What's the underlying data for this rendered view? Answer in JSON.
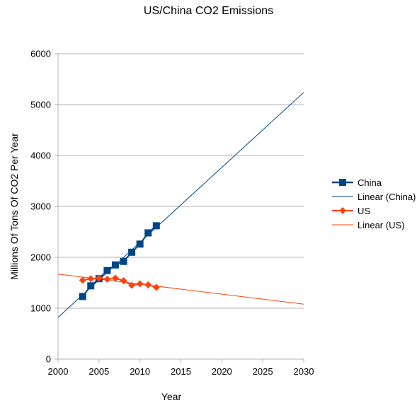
{
  "chart_data": {
    "type": "line",
    "title": "US/China CO2 Emissions",
    "xlabel": "Year",
    "ylabel": "Millions Of Tons Of CO2 Per Year",
    "xlim": [
      2000,
      2030
    ],
    "ylim": [
      0,
      6000
    ],
    "x_ticks": [
      2000,
      2005,
      2010,
      2015,
      2020,
      2025,
      2030
    ],
    "y_ticks": [
      0,
      1000,
      2000,
      3000,
      4000,
      5000,
      6000
    ],
    "grid": "horizontal",
    "legend_position": "right",
    "series": [
      {
        "name": "China",
        "color": "#004586",
        "marker": "square",
        "x": [
          2003,
          2004,
          2005,
          2006,
          2007,
          2008,
          2009,
          2010,
          2011,
          2012
        ],
        "values": [
          1230,
          1440,
          1580,
          1740,
          1850,
          1920,
          2100,
          2260,
          2480,
          2620
        ]
      },
      {
        "name": "US",
        "color": "#ff420e",
        "marker": "diamond",
        "x": [
          2003,
          2004,
          2005,
          2006,
          2007,
          2008,
          2009,
          2010,
          2011,
          2012
        ],
        "values": [
          1550,
          1580,
          1590,
          1570,
          1590,
          1540,
          1450,
          1480,
          1460,
          1410
        ]
      }
    ],
    "trendlines": [
      {
        "name": "Linear (China)",
        "color": "#004586",
        "x": [
          2000,
          2030
        ],
        "values": [
          820,
          5240
        ]
      },
      {
        "name": "Linear (US)",
        "color": "#ff420e",
        "x": [
          2000,
          2030
        ],
        "values": [
          1670,
          1080
        ]
      }
    ],
    "legend": [
      "China",
      "Linear (China)",
      "US",
      "Linear (US)"
    ]
  }
}
